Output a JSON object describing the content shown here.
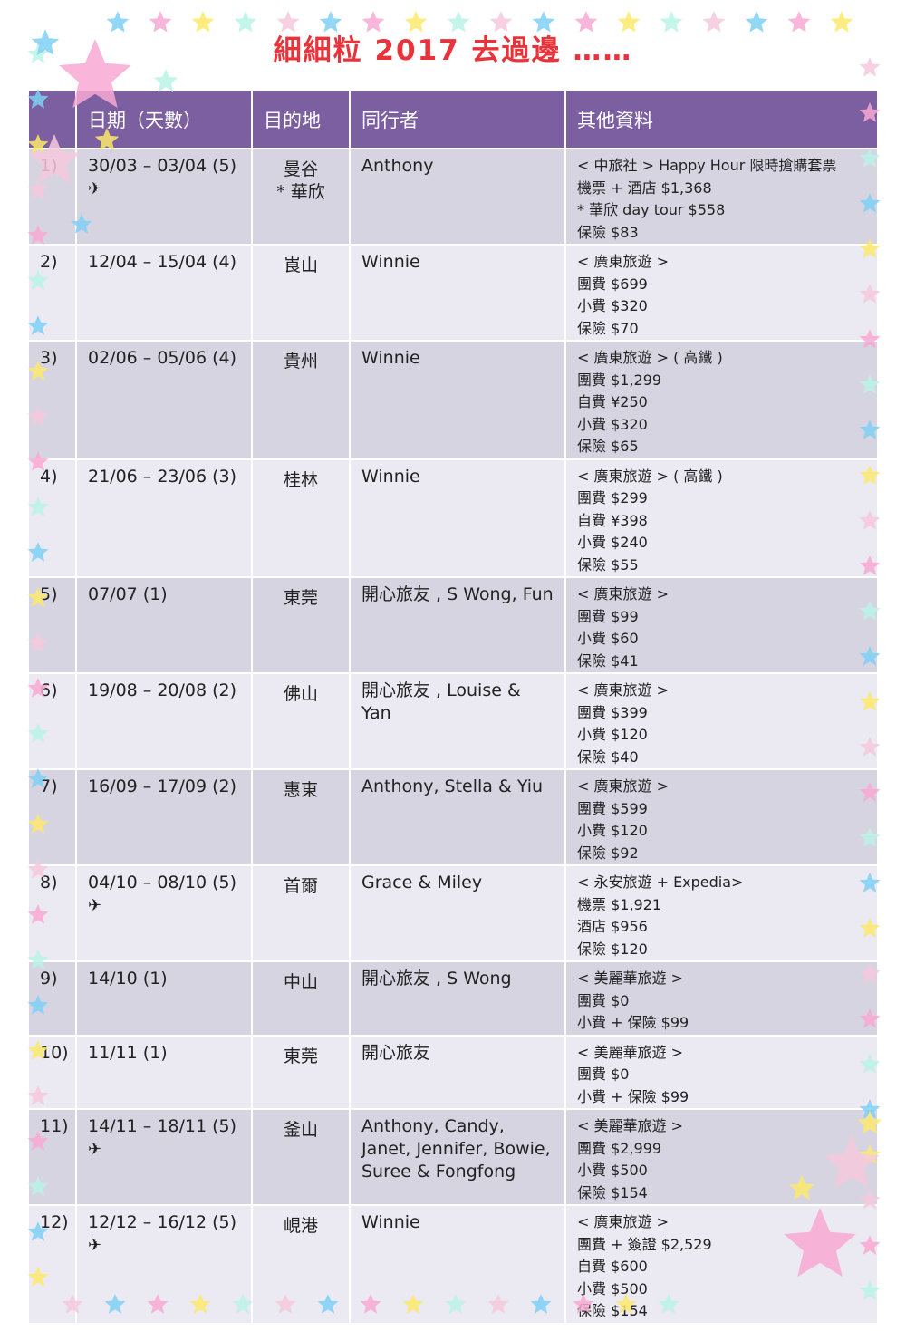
{
  "title": "細細粒  2017  去過邊 ……",
  "headers": [
    "",
    "日期（天數）",
    "目的地",
    "同行者",
    "其他資料"
  ],
  "rows": [
    {
      "no": "1)",
      "date": "30/03 – 03/04 (5)",
      "flight": true,
      "dest": "曼谷\n*  華欣",
      "with": "Anthony",
      "info": [
        "< 中旅社 > Happy Hour  限時搶購套票",
        "機票 + 酒店  $1,368",
        "*  華欣 day tour $558",
        "保險  $83"
      ]
    },
    {
      "no": "2)",
      "date": "12/04 – 15/04 (4)",
      "flight": false,
      "dest": "崀山",
      "with": "Winnie",
      "info": [
        "< 廣東旅遊 >",
        "團費  $699",
        "小費  $320",
        "保險  $70"
      ]
    },
    {
      "no": "3)",
      "date": "02/06 – 05/06 (4)",
      "flight": false,
      "dest": "貴州",
      "with": "Winnie",
      "info": [
        "< 廣東旅遊 > ( 高鐵 )",
        "團費  $1,299",
        "自費  ¥250",
        "小費  $320",
        "保險  $65"
      ]
    },
    {
      "no": "4)",
      "date": "21/06 – 23/06 (3)",
      "flight": false,
      "dest": "桂林",
      "with": "Winnie",
      "info": [
        "< 廣東旅遊 > ( 高鐵 )",
        "團費  $299",
        "自費  ¥398",
        "小費  $240",
        "保險  $55"
      ]
    },
    {
      "no": "5)",
      "date": "07/07 (1)",
      "flight": false,
      "dest": "東莞",
      "with": "開心旅友 , S Wong, Fun",
      "info": [
        "< 廣東旅遊 >",
        "團費  $99",
        "小費  $60",
        "保險  $41"
      ]
    },
    {
      "no": "6)",
      "date": "19/08 – 20/08 (2)",
      "flight": false,
      "dest": "佛山",
      "with": "開心旅友 , Louise & Yan",
      "info": [
        "< 廣東旅遊 >",
        "團費  $399",
        "小費  $120",
        "保險  $40"
      ]
    },
    {
      "no": "7)",
      "date": "16/09 – 17/09 (2)",
      "flight": false,
      "dest": "惠東",
      "with": "Anthony, Stella & Yiu",
      "info": [
        "< 廣東旅遊 >",
        "團費  $599",
        "小費  $120",
        "保險  $92"
      ]
    },
    {
      "no": "8)",
      "date": "04/10 – 08/10 (5)",
      "flight": true,
      "dest": "首爾",
      "with": "Grace & Miley",
      "info": [
        "< 永安旅遊  + Expedia>",
        "機票  $1,921",
        "酒店  $956",
        "保險  $120"
      ]
    },
    {
      "no": "9)",
      "date": "14/10 (1)",
      "flight": false,
      "dest": "中山",
      "with": "開心旅友 , S Wong",
      "info": [
        "< 美麗華旅遊 >",
        "團費  $0",
        "小費  +  保險  $99"
      ]
    },
    {
      "no": "10)",
      "date": "11/11 (1)",
      "flight": false,
      "dest": "東莞",
      "with": "開心旅友",
      "info": [
        "< 美麗華旅遊 >",
        "團費  $0",
        "小費  +  保險  $99"
      ]
    },
    {
      "no": "11)",
      "date": "14/11 – 18/11 (5)",
      "flight": true,
      "dest": "釜山",
      "with": "Anthony, Candy, Janet, Jennifer, Bowie, Suree & Fongfong",
      "info": [
        "< 美麗華旅遊 >",
        "團費  $2,999",
        "小費  $500",
        "保險  $154"
      ]
    },
    {
      "no": "12)",
      "date": "12/12 – 16/12 (5)",
      "flight": true,
      "dest": "峴港",
      "with": "Winnie",
      "info": [
        "< 廣東旅遊 >",
        "團費 + 簽證  $2,529",
        "自費  $600",
        "小費  $500",
        "保險  $154"
      ]
    }
  ],
  "flight_icon": "airplane-icon",
  "colors": {
    "header": "#7c5fa0",
    "title": "#e8333a",
    "row_dark": "#d7d4e2",
    "row_light": "#ebe9f1"
  }
}
